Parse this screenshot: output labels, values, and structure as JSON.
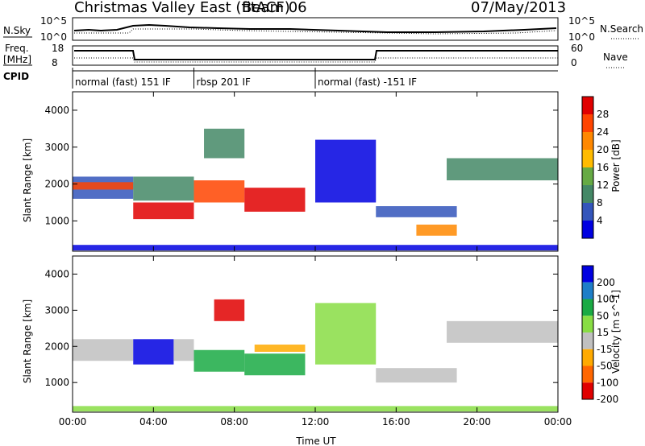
{
  "header": {
    "station": "Christmas Valley East (fitACF)",
    "beam": "Beam 06",
    "date": "07/May/2013"
  },
  "strip_labels": {
    "nsky": "N.Sky",
    "nsearch": "N.Search",
    "freq_line1": "Freq.",
    "freq_line2": "[MHz]",
    "nave": "Nave",
    "cpid": "CPID",
    "nsky_ticks": [
      "10^5",
      "10^0"
    ],
    "nsearch_ticks": [
      "10^5",
      "10^0"
    ],
    "freq_ticks": [
      "18",
      "8"
    ],
    "nave_ticks": [
      "60",
      "0"
    ]
  },
  "cpid_segments": [
    {
      "start_hour": 0,
      "end_hour": 6,
      "label": "normal (fast) 151 IF"
    },
    {
      "start_hour": 6,
      "end_hour": 12,
      "label": "rbsp 201 IF"
    },
    {
      "start_hour": 12,
      "end_hour": 24,
      "label": "normal (fast) -151 IF"
    }
  ],
  "chart_data": [
    {
      "type": "heatmap",
      "name": "power-panel",
      "ylabel": "Slant Range [km]",
      "xlabel": "",
      "x_ticks": [
        "00:00",
        "04:00",
        "08:00",
        "12:00",
        "16:00",
        "20:00",
        "00:00"
      ],
      "y_ticks": [
        1000,
        2000,
        3000,
        4000
      ],
      "xlim_hours": [
        0,
        24
      ],
      "ylim": [
        180,
        4500
      ],
      "colorbar": {
        "label": "Power [dB]",
        "ticks": [
          "28",
          "24",
          "20",
          "16",
          "12",
          "8",
          "4"
        ],
        "colors": [
          "#e00000",
          "#ff4400",
          "#ff8800",
          "#ffbb00",
          "#66aa44",
          "#448866",
          "#3355bb",
          "#0000e0"
        ]
      },
      "bands": [
        {
          "t0": 0,
          "t1": 3,
          "r0": 1600,
          "r1": 2200,
          "level": 6
        },
        {
          "t0": 0,
          "t1": 3,
          "r0": 1850,
          "r1": 2050,
          "level": 1
        },
        {
          "t0": 3,
          "t1": 6,
          "r0": 1050,
          "r1": 1500,
          "level": 0
        },
        {
          "t0": 3,
          "t1": 6,
          "r0": 1550,
          "r1": 2200,
          "level": 5
        },
        {
          "t0": 6,
          "t1": 8.5,
          "r0": 1500,
          "r1": 2100,
          "level": 1
        },
        {
          "t0": 8.5,
          "t1": 11.5,
          "r0": 1250,
          "r1": 1900,
          "level": 0
        },
        {
          "t0": 6.5,
          "t1": 8.5,
          "r0": 2700,
          "r1": 3500,
          "level": 5
        },
        {
          "t0": 12,
          "t1": 15,
          "r0": 1500,
          "r1": 3200,
          "level": 7
        },
        {
          "t0": 15,
          "t1": 19,
          "r0": 1100,
          "r1": 1400,
          "level": 6
        },
        {
          "t0": 17,
          "t1": 19,
          "r0": 600,
          "r1": 900,
          "level": 2
        },
        {
          "t0": 18.5,
          "t1": 24,
          "r0": 2100,
          "r1": 2700,
          "level": 5
        },
        {
          "t0": 0,
          "t1": 24,
          "r0": 200,
          "r1": 350,
          "level": 7
        }
      ]
    },
    {
      "type": "heatmap",
      "name": "velocity-panel",
      "ylabel": "Slant Range [km]",
      "xlabel": "Time UT",
      "x_ticks": [
        "00:00",
        "04:00",
        "08:00",
        "12:00",
        "16:00",
        "20:00",
        "00:00"
      ],
      "y_ticks": [
        1000,
        2000,
        3000,
        4000
      ],
      "xlim_hours": [
        0,
        24
      ],
      "ylim": [
        180,
        4500
      ],
      "colorbar": {
        "label": "Velocity [m s^-1]",
        "ticks": [
          "200",
          "100",
          "50",
          "15",
          "-15",
          "-50",
          "-100",
          "-200"
        ],
        "colors": [
          "#0000e0",
          "#1e7ec8",
          "#1aaa44",
          "#88dd44",
          "#c0c0c0",
          "#ffaa00",
          "#ff6600",
          "#e00000"
        ]
      },
      "bands": [
        {
          "t0": 0,
          "t1": 3,
          "r0": 1600,
          "r1": 2200,
          "level": 4
        },
        {
          "t0": 3,
          "t1": 5,
          "r0": 1500,
          "r1": 2200,
          "level": 0
        },
        {
          "t0": 5,
          "t1": 6,
          "r0": 1600,
          "r1": 2200,
          "level": 4
        },
        {
          "t0": 6,
          "t1": 8.5,
          "r0": 1300,
          "r1": 1900,
          "level": 2
        },
        {
          "t0": 8.5,
          "t1": 11.5,
          "r0": 1200,
          "r1": 1800,
          "level": 2
        },
        {
          "t0": 9,
          "t1": 11.5,
          "r0": 1850,
          "r1": 2050,
          "level": 5
        },
        {
          "t0": 7,
          "t1": 8.5,
          "r0": 2700,
          "r1": 3300,
          "level": 7
        },
        {
          "t0": 12,
          "t1": 15,
          "r0": 1500,
          "r1": 3200,
          "level": 3
        },
        {
          "t0": 15,
          "t1": 19,
          "r0": 1000,
          "r1": 1400,
          "level": 4
        },
        {
          "t0": 18.5,
          "t1": 24,
          "r0": 2100,
          "r1": 2700,
          "level": 4
        },
        {
          "t0": 0,
          "t1": 24,
          "r0": 200,
          "r1": 350,
          "level": 3
        }
      ]
    }
  ]
}
